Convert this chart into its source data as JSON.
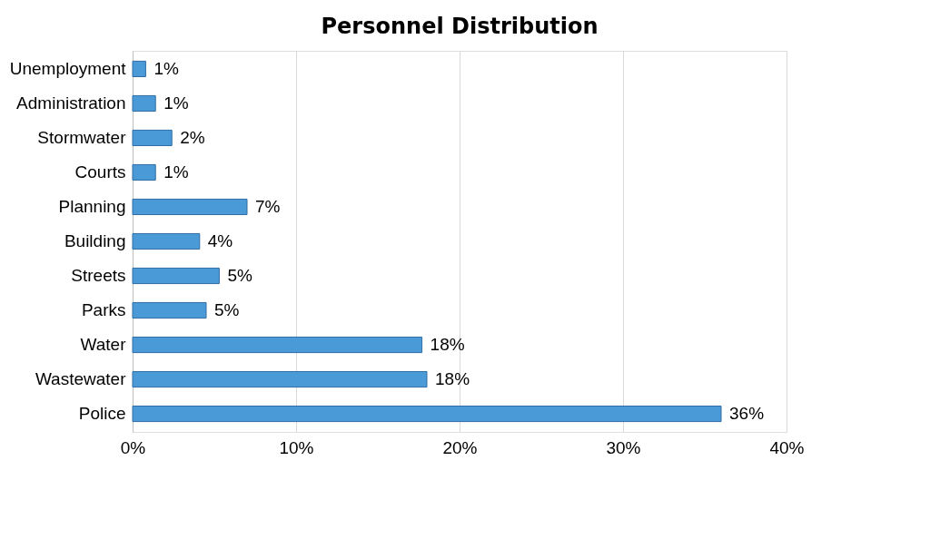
{
  "chart_data": {
    "type": "bar",
    "orientation": "horizontal",
    "title": "Personnel Distribution",
    "categories": [
      "Unemployment",
      "Administration",
      "Stormwater",
      "Courts",
      "Planning",
      "Building",
      "Streets",
      "Parks",
      "Water",
      "Wastewater",
      "Police"
    ],
    "values": [
      0.8,
      1.4,
      2.4,
      1.4,
      7.0,
      4.1,
      5.3,
      4.5,
      17.7,
      18.0,
      36.0
    ],
    "value_labels": [
      "1%",
      "1%",
      "2%",
      "1%",
      "7%",
      "4%",
      "5%",
      "5%",
      "18%",
      "18%",
      "36%"
    ],
    "color": "#4a9ad8",
    "xlim": [
      0,
      40
    ],
    "xticks": [
      {
        "value": 0,
        "label": "0%"
      },
      {
        "value": 10,
        "label": "10%"
      },
      {
        "value": 20,
        "label": "20%"
      },
      {
        "value": 30,
        "label": "30%"
      },
      {
        "value": 40,
        "label": "40%"
      }
    ],
    "grid": "x"
  }
}
